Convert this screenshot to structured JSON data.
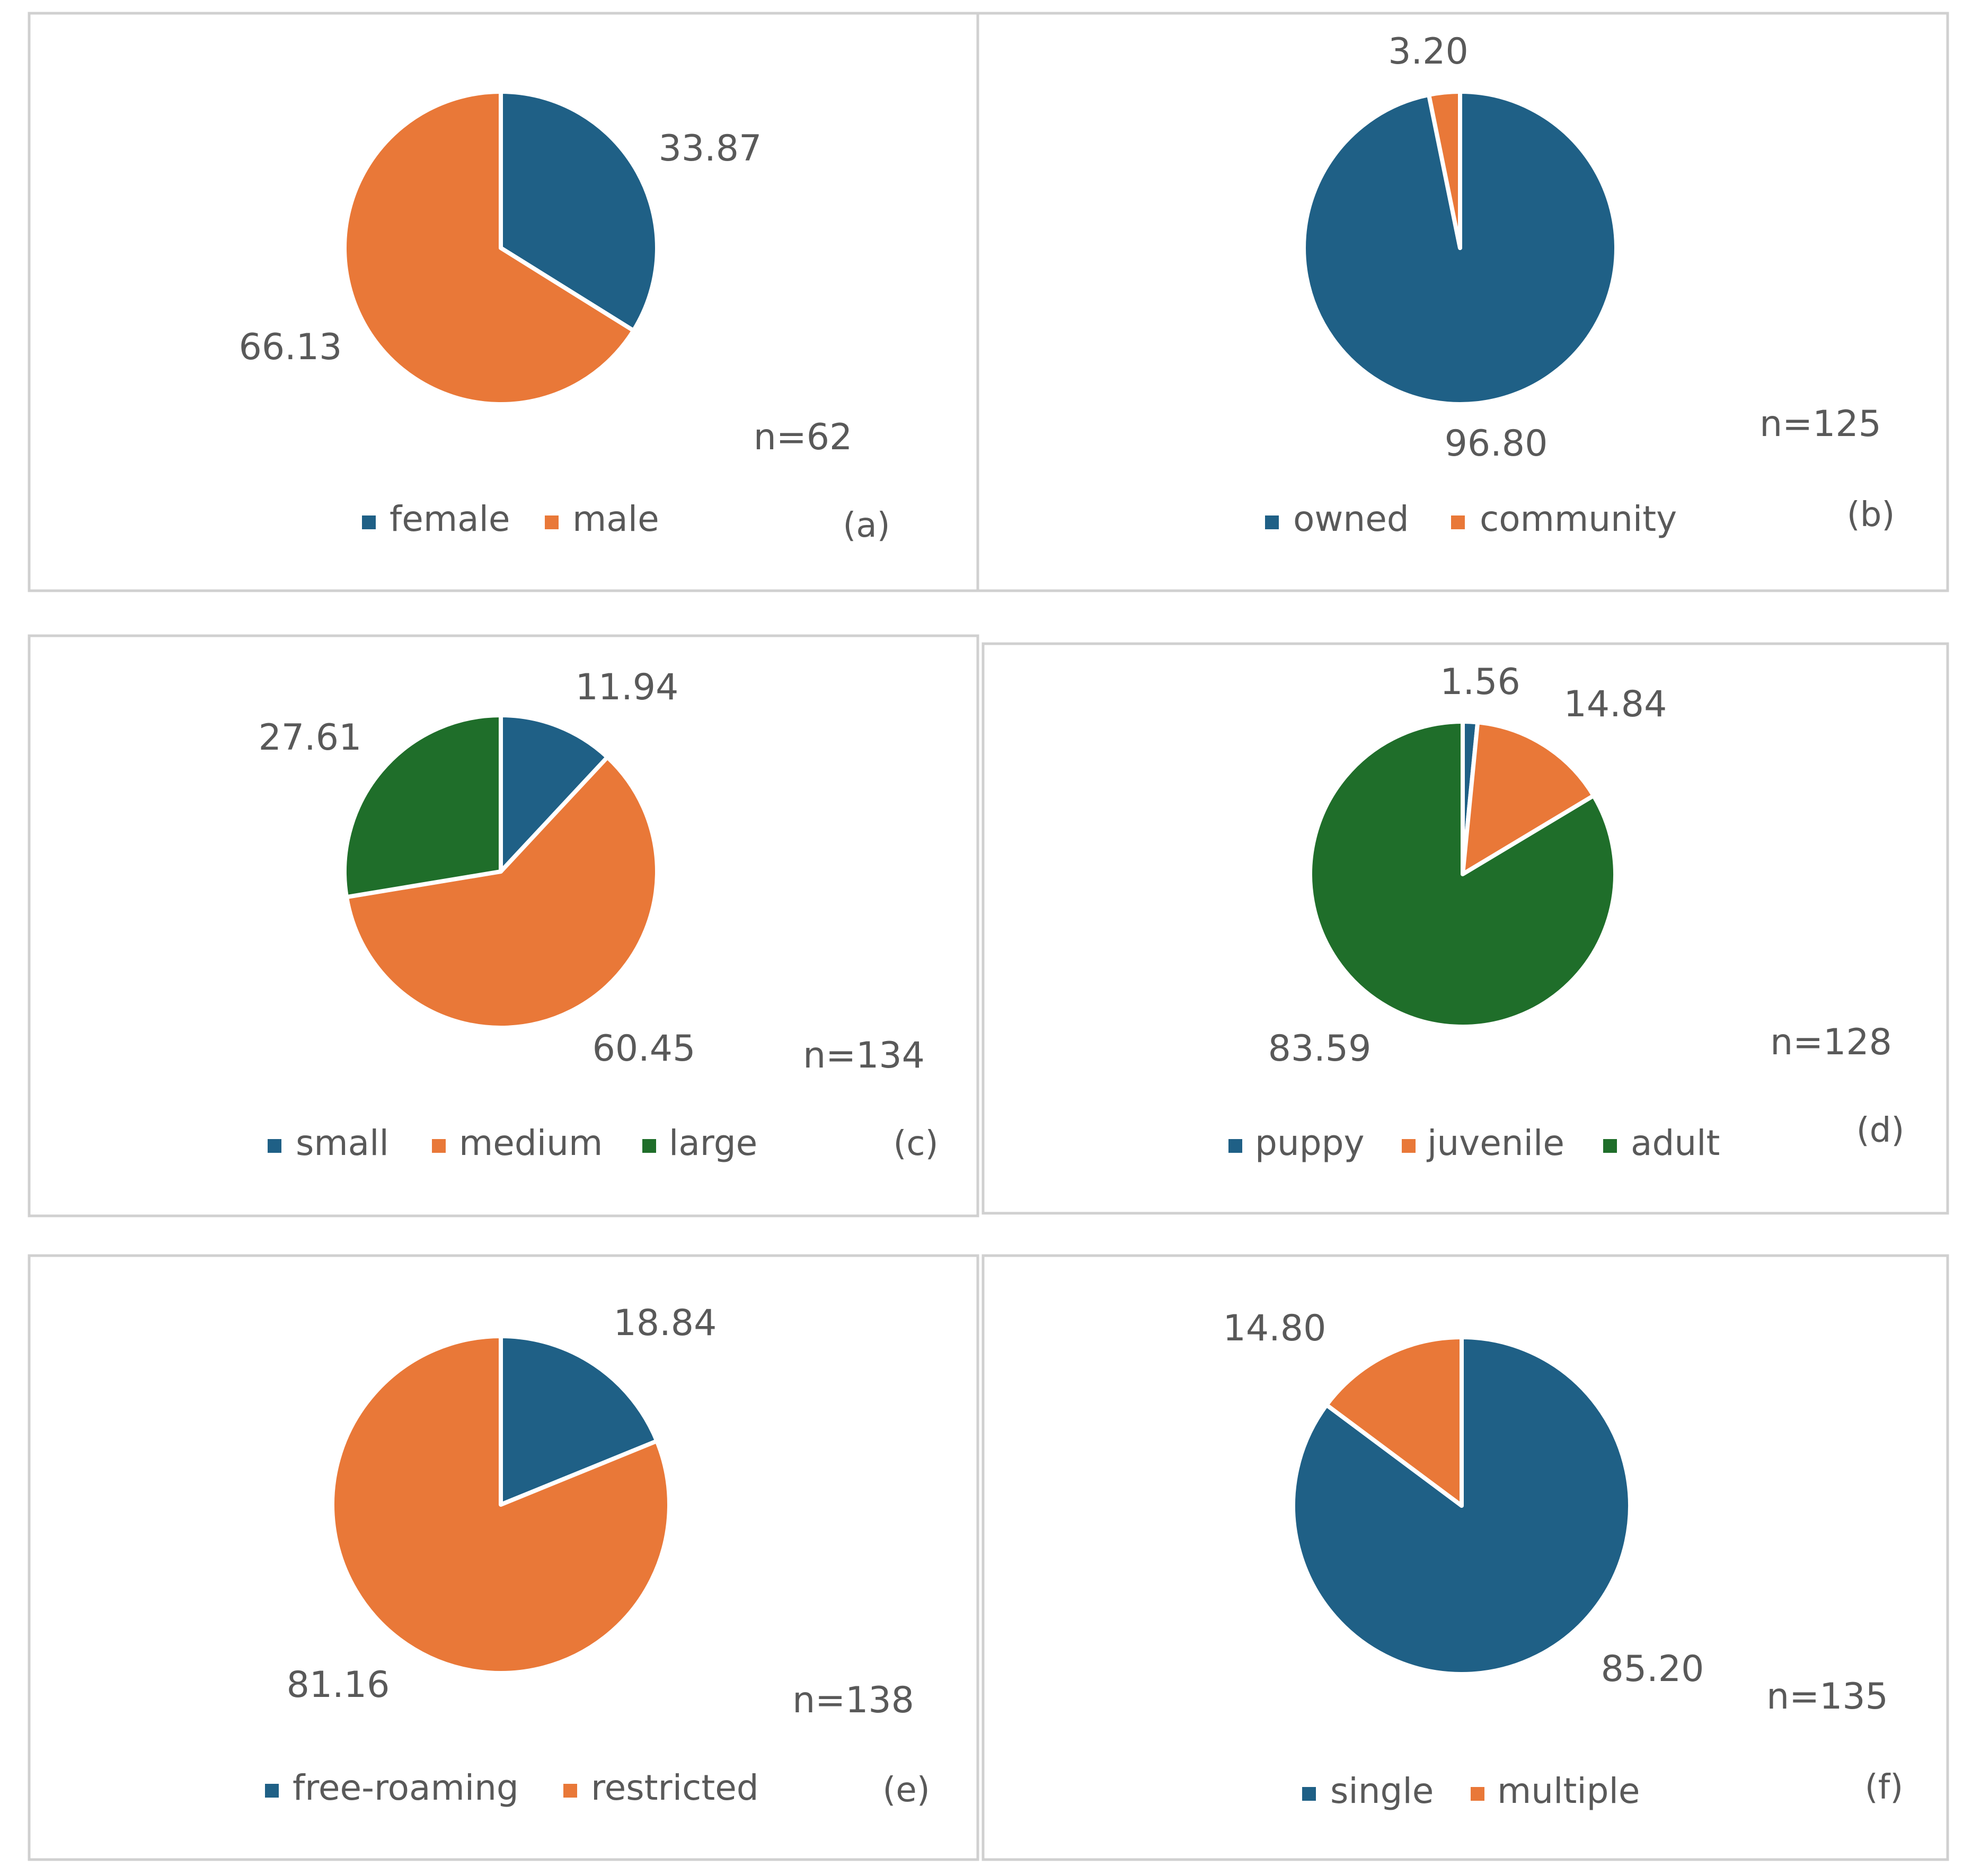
{
  "chart_data": [
    {
      "type": "pie",
      "panel_label": "(a)",
      "n_label": "n=62",
      "categories": [
        "female",
        "male"
      ],
      "values": [
        33.87,
        66.13
      ],
      "value_labels": [
        "33.87",
        "66.13"
      ],
      "colors": [
        "#1f6086",
        "#e97838"
      ],
      "legend": [
        "female",
        "male"
      ]
    },
    {
      "type": "pie",
      "panel_label": "(b)",
      "n_label": "n=125",
      "categories": [
        "owned",
        "community"
      ],
      "values": [
        96.8,
        3.2
      ],
      "value_labels": [
        "96.80",
        "3.20"
      ],
      "colors": [
        "#1f6086",
        "#e97838"
      ],
      "legend": [
        "owned",
        "community"
      ]
    },
    {
      "type": "pie",
      "panel_label": "(c)",
      "n_label": "n=134",
      "categories": [
        "small",
        "medium",
        "large"
      ],
      "values": [
        11.94,
        60.45,
        27.61
      ],
      "value_labels": [
        "11.94",
        "60.45",
        "27.61"
      ],
      "colors": [
        "#1f6086",
        "#e97838",
        "#1f6e2a"
      ],
      "legend": [
        "small",
        "medium",
        "large"
      ]
    },
    {
      "type": "pie",
      "panel_label": "(d)",
      "n_label": "n=128",
      "categories": [
        "puppy",
        "juvenile",
        "adult"
      ],
      "values": [
        1.56,
        14.84,
        83.59
      ],
      "value_labels": [
        "1.56",
        "14.84",
        "83.59"
      ],
      "colors": [
        "#1f6086",
        "#e97838",
        "#1f6e2a"
      ],
      "legend": [
        "puppy",
        "juvenile",
        "adult"
      ]
    },
    {
      "type": "pie",
      "panel_label": "(e)",
      "n_label": "n=138",
      "categories": [
        "free-roaming",
        "restricted"
      ],
      "values": [
        18.84,
        81.16
      ],
      "value_labels": [
        "18.84",
        "81.16"
      ],
      "colors": [
        "#1f6086",
        "#e97838"
      ],
      "legend": [
        "free-roaming",
        "restricted"
      ]
    },
    {
      "type": "pie",
      "panel_label": "(f)",
      "n_label": "n=135",
      "categories": [
        "single",
        "multiple"
      ],
      "values": [
        85.2,
        14.8
      ],
      "value_labels": [
        "85.20",
        "14.80"
      ],
      "colors": [
        "#1f6086",
        "#e97838"
      ],
      "legend": [
        "single",
        "multiple"
      ]
    }
  ]
}
